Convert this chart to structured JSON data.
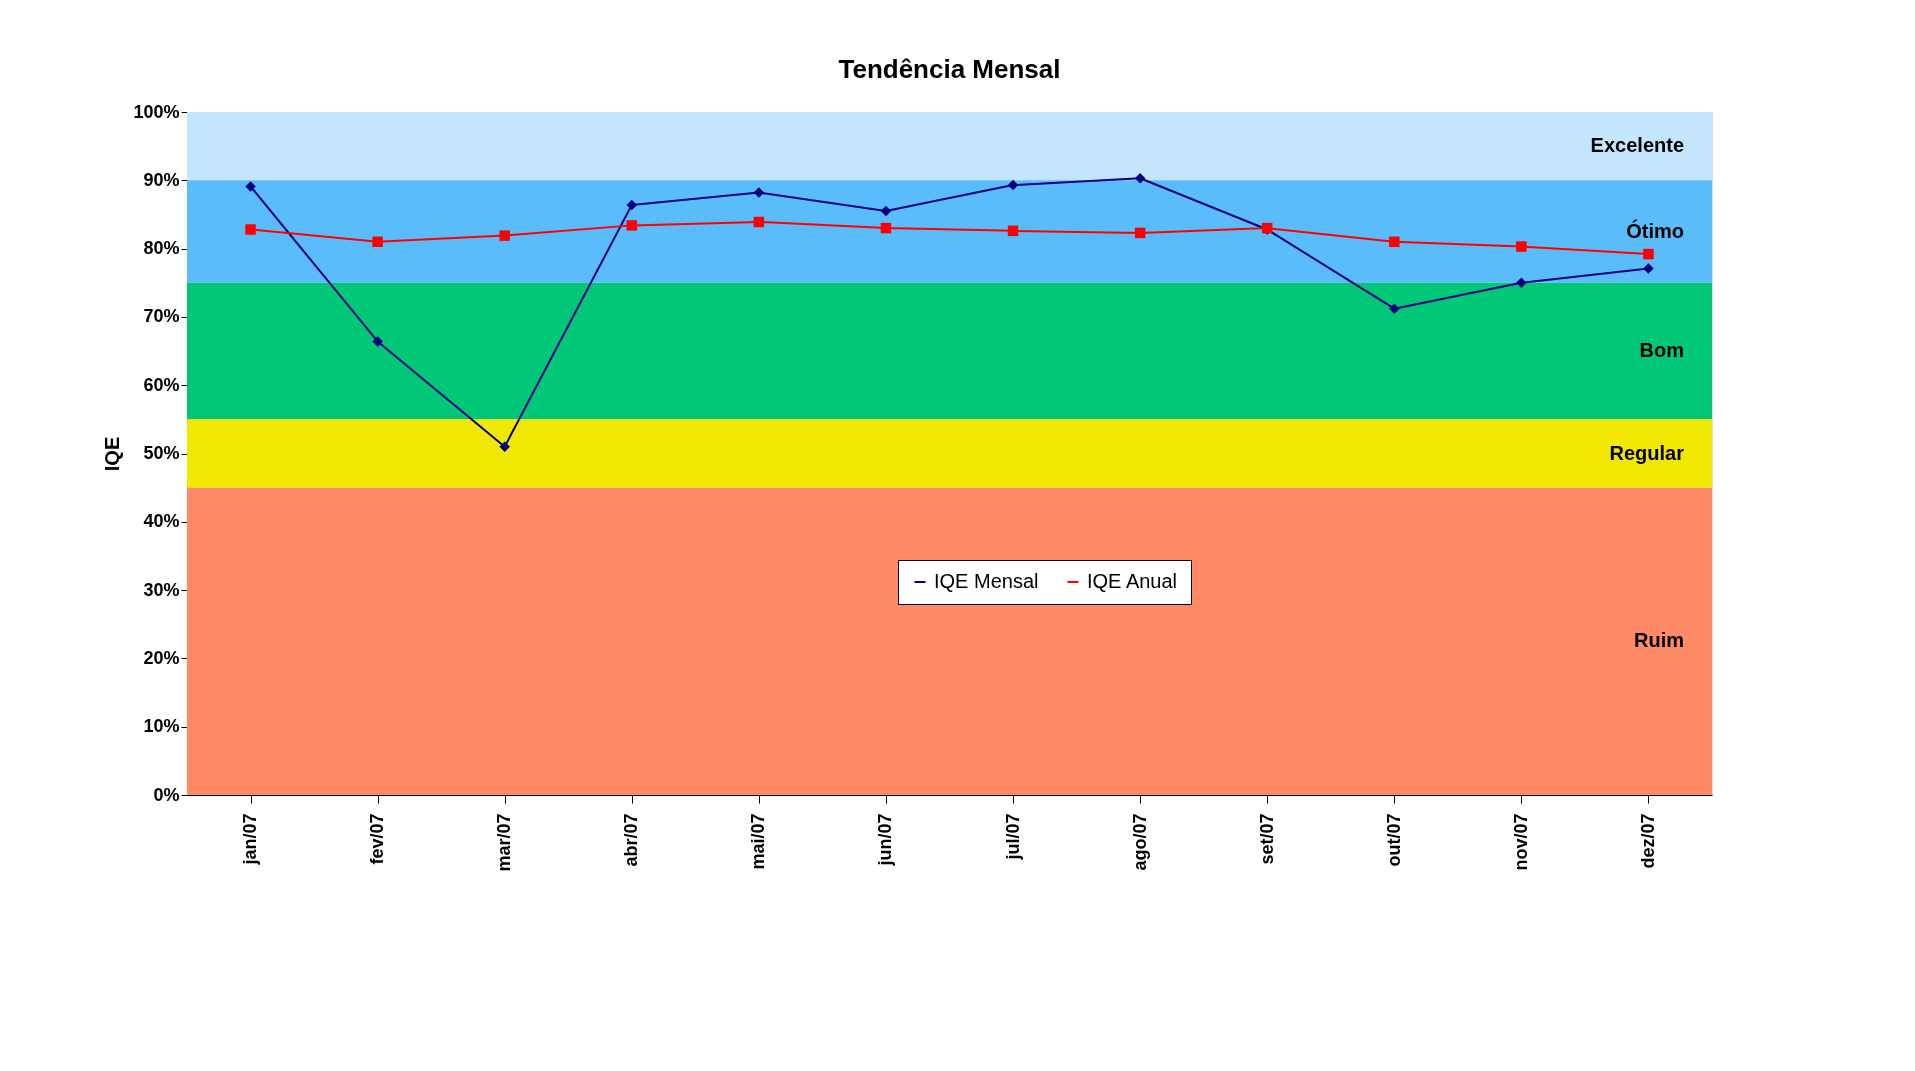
{
  "chart_data": {
    "type": "line",
    "title": "Tendência Mensal",
    "ylabel": "IQE",
    "categories": [
      "jan/07",
      "fev/07",
      "mar/07",
      "abr/07",
      "mai/07",
      "jun/07",
      "jul/07",
      "ago/07",
      "set/07",
      "out/07",
      "nov/07",
      "dez/07"
    ],
    "series": [
      {
        "name": "IQE Mensal",
        "color": "#000080",
        "marker": "diamond",
        "values": [
          89.1,
          66.4,
          51,
          86.4,
          88.2,
          85.5,
          89.3,
          90.3,
          82.8,
          71.2,
          75,
          77.1
        ]
      },
      {
        "name": "IQE Anual",
        "color": "#ff0000",
        "marker": "square",
        "values": [
          82.8,
          81,
          81.9,
          83.4,
          83.9,
          83,
          82.6,
          82.3,
          83,
          81,
          80.3,
          79.2
        ]
      }
    ],
    "ylim": [
      0,
      100
    ],
    "yticks": [
      {
        "value": 0,
        "label": "0%"
      },
      {
        "value": 10,
        "label": "10%"
      },
      {
        "value": 20,
        "label": "20%"
      },
      {
        "value": 30,
        "label": "30%"
      },
      {
        "value": 40,
        "label": "40%"
      },
      {
        "value": 50,
        "label": "50%"
      },
      {
        "value": 60,
        "label": "60%"
      },
      {
        "value": 70,
        "label": "70%"
      },
      {
        "value": 80,
        "label": "80%"
      },
      {
        "value": 90,
        "label": "90%"
      },
      {
        "value": 100,
        "label": "100%"
      }
    ],
    "bands": [
      {
        "axis": "y",
        "from": 90,
        "to": 100,
        "label": "Excelente",
        "color": "#c4e6fc"
      },
      {
        "axis": "y",
        "from": 75,
        "to": 90,
        "label": "Ótimo",
        "color": "#5bbcfc"
      },
      {
        "axis": "y",
        "from": 55,
        "to": 75,
        "label": "Bom",
        "color": "#00c878"
      },
      {
        "axis": "y",
        "from": 45,
        "to": 55,
        "label": "Regular",
        "color": "#f0e800"
      },
      {
        "axis": "y",
        "from": 0,
        "to": 45,
        "label": "Ruim",
        "color": "#ff8a66"
      }
    ],
    "grid": false,
    "legend": "bottom",
    "line_style": "solid"
  }
}
